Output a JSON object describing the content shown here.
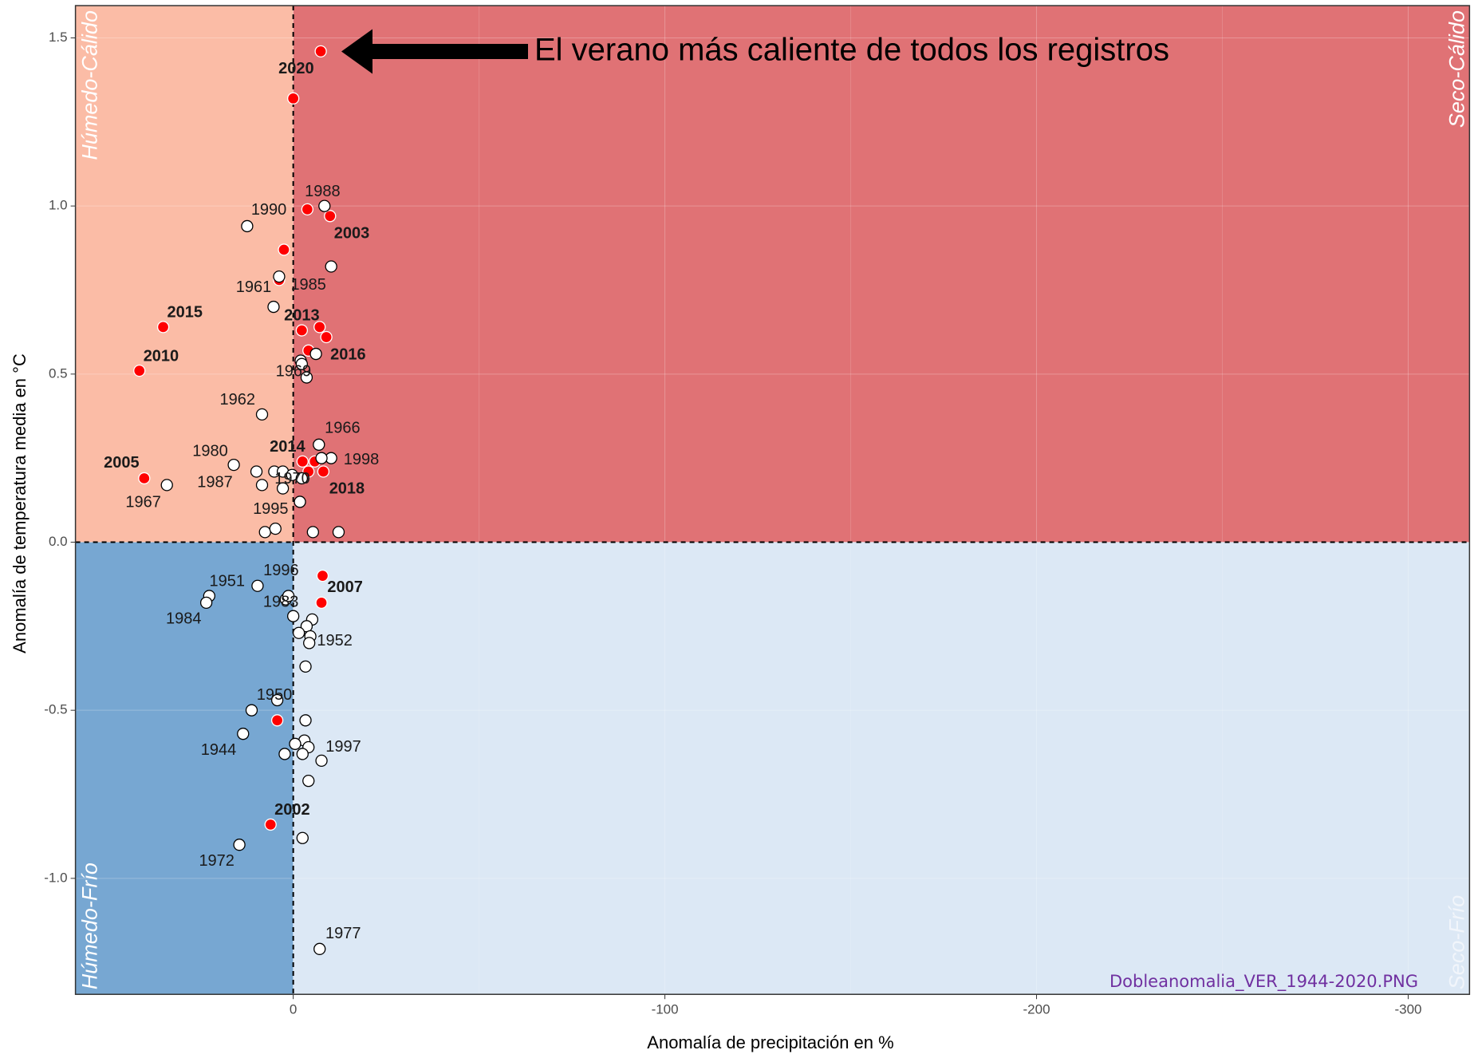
{
  "chart_data": {
    "type": "scatter",
    "annotation": "El verano más caliente de todos los registros",
    "watermark": "Dobleanomalia_VER_1944-2020.PNG",
    "x_label": "Anomalía de precipitación en %",
    "y_label": "Anomalía de temperatura media en °C",
    "quadrants": {
      "top_left": "Húmedo-Cálido",
      "top_right": "Seco-Cálido",
      "bottom_left": "Húmedo-Frío",
      "bottom_right": "Seco-Frío"
    },
    "quadrant_colors": {
      "top_left": "#fbbca6",
      "top_right": "#e07275",
      "bottom_left": "#77a7d2",
      "bottom_right": "#dce8f5"
    },
    "xlim": [
      58.6,
      -316.5
    ],
    "ylim": [
      -1.345,
      1.596
    ],
    "xticks": [
      0,
      -100,
      -200,
      -300
    ],
    "yticks": [
      {
        "value": -1,
        "label": "-1.0"
      },
      -0.5,
      {
        "value": 0,
        "label": "0.0"
      },
      0.5,
      {
        "value": 1,
        "label": "1.0"
      },
      1.5
    ],
    "grid": true,
    "series": [
      {
        "color": "#ff0000",
        "bold": true,
        "x": [
          -7.4,
          0,
          -3.8,
          -9.9,
          2.5,
          3.8,
          35.0,
          41.4,
          -2.3,
          -7.1,
          -8.9,
          -4.1,
          40.1,
          -2.5,
          -5.8,
          -4.1,
          -8.1,
          -7.9,
          -7.6,
          4.3,
          6.1
        ],
        "y": [
          1.46,
          1.32,
          0.99,
          0.97,
          0.87,
          0.78,
          0.64,
          0.51,
          0.63,
          0.64,
          0.61,
          0.57,
          0.19,
          0.24,
          0.24,
          0.21,
          0.21,
          -0.1,
          -0.18,
          -0.53,
          -0.84
        ],
        "labels": [
          "2020",
          null,
          null,
          "2003",
          null,
          null,
          "2015",
          "2010",
          "2013",
          null,
          null,
          "2016",
          "2005",
          "2014",
          null,
          null,
          "2018",
          null,
          "2007",
          null,
          "2002"
        ]
      },
      {
        "color": "#ffffff",
        "bold": false,
        "x": [
          -8.4,
          12.4,
          -10.2,
          3.8,
          5.3,
          -2.0,
          -2.3,
          -6.1,
          -3.6,
          8.4,
          -6.9,
          -10.2,
          16.0,
          9.9,
          5.1,
          2.8,
          0.3,
          -2.3,
          -7.6,
          34.0,
          8.4,
          2.8,
          -1.8,
          7.6,
          4.8,
          -5.3,
          -12.2,
          9.6,
          22.6,
          23.4,
          2.0,
          1.3,
          0,
          -5.1,
          -3.6,
          -1.5,
          -4.6,
          -4.3,
          -3.3,
          4.3,
          11.2,
          13.5,
          -3.3,
          -3.0,
          -0.5,
          -4.1,
          -2.5,
          2.3,
          -7.6,
          -4.1,
          -2.5,
          14.5,
          -7.1
        ],
        "y": [
          1.0,
          0.94,
          0.82,
          0.79,
          0.7,
          0.54,
          0.53,
          0.56,
          0.49,
          0.38,
          0.29,
          0.25,
          0.23,
          0.21,
          0.21,
          0.21,
          0.2,
          0.19,
          0.25,
          0.17,
          0.17,
          0.16,
          0.12,
          0.03,
          0.04,
          0.03,
          0.03,
          -0.13,
          -0.16,
          -0.18,
          -0.17,
          -0.16,
          -0.22,
          -0.23,
          -0.25,
          -0.27,
          -0.28,
          -0.3,
          -0.37,
          -0.47,
          -0.5,
          -0.57,
          -0.53,
          -0.59,
          -0.6,
          -0.61,
          -0.63,
          -0.63,
          -0.65,
          -0.71,
          -0.88,
          -0.9,
          -1.21
        ],
        "labels": [
          "1988",
          "1990",
          null,
          "1961",
          "1985",
          null,
          null,
          null,
          "1969",
          "1962",
          "1966",
          "1998",
          "1980",
          "1987",
          null,
          null,
          null,
          "1970",
          null,
          "1967",
          null,
          null,
          null,
          "1995",
          null,
          null,
          null,
          null,
          "1951",
          "1984",
          "1996",
          "1983",
          null,
          null,
          null,
          null,
          null,
          "1952",
          null,
          "1950",
          null,
          "1944",
          null,
          null,
          null,
          "1997",
          null,
          null,
          null,
          null,
          null,
          "1972",
          "1977"
        ]
      }
    ]
  }
}
